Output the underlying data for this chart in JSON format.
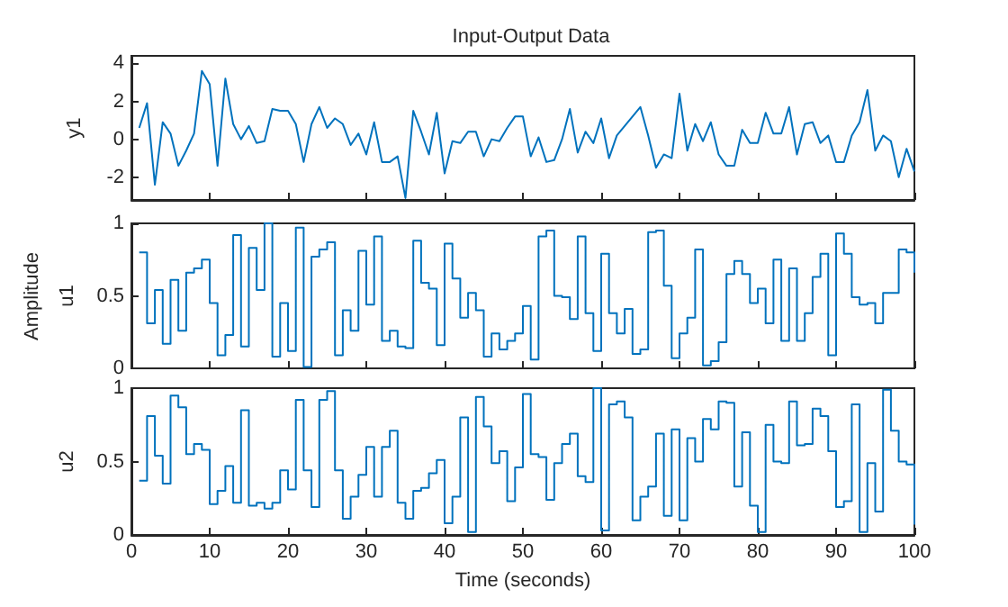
{
  "chart_data": [
    {
      "type": "line",
      "title": "Input-Output Data",
      "ylabel": "y1",
      "x": [
        1,
        2,
        3,
        4,
        5,
        6,
        7,
        8,
        9,
        10,
        11,
        12,
        13,
        14,
        15,
        16,
        17,
        18,
        19,
        20,
        21,
        22,
        23,
        24,
        25,
        26,
        27,
        28,
        29,
        30,
        31,
        32,
        33,
        34,
        35,
        36,
        37,
        38,
        39,
        40,
        41,
        42,
        43,
        44,
        45,
        46,
        47,
        48,
        49,
        50,
        51,
        52,
        53,
        54,
        55,
        56,
        57,
        58,
        59,
        60,
        61,
        62,
        63,
        64,
        65,
        66,
        67,
        68,
        69,
        70,
        71,
        72,
        73,
        74,
        75,
        76,
        77,
        78,
        79,
        80,
        81,
        82,
        83,
        84,
        85,
        86,
        87,
        88,
        89,
        90,
        91,
        92,
        93,
        94,
        95,
        96,
        97,
        98,
        99,
        100
      ],
      "series": [
        {
          "color": "#0072bd",
          "values": [
            0.6,
            1.9,
            -2.4,
            0.9,
            0.3,
            -1.4,
            -0.6,
            0.3,
            3.6,
            2.9,
            -1.4,
            3.2,
            0.8,
            0.0,
            0.7,
            -0.2,
            -0.1,
            1.6,
            1.5,
            1.5,
            0.8,
            -1.2,
            0.8,
            1.7,
            0.6,
            1.1,
            0.8,
            -0.3,
            0.3,
            -0.8,
            0.9,
            -1.2,
            -1.2,
            -0.9,
            -3.1,
            1.5,
            0.4,
            -0.8,
            1.4,
            -1.8,
            -0.1,
            -0.2,
            0.4,
            0.4,
            -0.9,
            0.0,
            -0.1,
            0.6,
            1.2,
            1.2,
            -0.9,
            0.1,
            -1.2,
            -1.1,
            0.0,
            1.6,
            -0.7,
            0.4,
            -0.2,
            1.1,
            -1.0,
            0.2,
            0.7,
            1.2,
            1.7,
            0.2,
            -1.5,
            -0.8,
            -1.0,
            2.4,
            -0.6,
            0.8,
            -0.1,
            0.9,
            -0.8,
            -1.4,
            -1.4,
            0.5,
            -0.2,
            -0.2,
            1.4,
            0.3,
            0.3,
            1.7,
            -0.8,
            0.8,
            0.9,
            -0.2,
            0.2,
            -1.2,
            -1.2,
            0.2,
            0.9,
            2.6,
            -0.6,
            0.2,
            -0.1,
            -2.0,
            -0.5,
            -1.7
          ]
        }
      ],
      "xlim": [
        0,
        100
      ],
      "xticks": [
        0,
        10,
        20,
        30,
        40,
        50,
        60,
        70,
        80,
        90,
        100
      ],
      "ylim": [
        -3.2,
        4.4
      ],
      "yticks": [
        -2,
        0,
        2,
        4
      ],
      "tick_labels": "y"
    },
    {
      "type": "step",
      "ylabel": "u1",
      "annotations": [
        "Amplitude"
      ],
      "x": [
        1,
        2,
        3,
        4,
        5,
        6,
        7,
        8,
        9,
        10,
        11,
        12,
        13,
        14,
        15,
        16,
        17,
        18,
        19,
        20,
        21,
        22,
        23,
        24,
        25,
        26,
        27,
        28,
        29,
        30,
        31,
        32,
        33,
        34,
        35,
        36,
        37,
        38,
        39,
        40,
        41,
        42,
        43,
        44,
        45,
        46,
        47,
        48,
        49,
        50,
        51,
        52,
        53,
        54,
        55,
        56,
        57,
        58,
        59,
        60,
        61,
        62,
        63,
        64,
        65,
        66,
        67,
        68,
        69,
        70,
        71,
        72,
        73,
        74,
        75,
        76,
        77,
        78,
        79,
        80,
        81,
        82,
        83,
        84,
        85,
        86,
        87,
        88,
        89,
        90,
        91,
        92,
        93,
        94,
        95,
        96,
        97,
        98,
        99,
        100
      ],
      "series": [
        {
          "color": "#0072bd",
          "values": [
            0.8,
            0.31,
            0.54,
            0.17,
            0.61,
            0.26,
            0.66,
            0.69,
            0.75,
            0.45,
            0.09,
            0.23,
            0.92,
            0.15,
            0.83,
            0.54,
            1.0,
            0.08,
            0.45,
            0.12,
            0.97,
            0.01,
            0.77,
            0.82,
            0.87,
            0.09,
            0.4,
            0.26,
            0.81,
            0.44,
            0.91,
            0.19,
            0.26,
            0.15,
            0.14,
            0.88,
            0.59,
            0.55,
            0.16,
            0.86,
            0.62,
            0.35,
            0.52,
            0.4,
            0.08,
            0.24,
            0.13,
            0.19,
            0.24,
            0.43,
            0.06,
            0.91,
            0.95,
            0.5,
            0.49,
            0.34,
            0.91,
            0.38,
            0.12,
            0.79,
            0.38,
            0.24,
            0.41,
            0.1,
            0.13,
            0.94,
            0.95,
            0.57,
            0.07,
            0.24,
            0.35,
            0.82,
            0.02,
            0.05,
            0.18,
            0.65,
            0.74,
            0.65,
            0.45,
            0.55,
            0.31,
            0.75,
            0.19,
            0.69,
            0.19,
            0.38,
            0.63,
            0.79,
            0.09,
            0.93,
            0.79,
            0.49,
            0.44,
            0.45,
            0.31,
            0.52,
            0.52,
            0.82,
            0.8,
            0.66
          ]
        }
      ],
      "xlim": [
        0,
        100
      ],
      "xticks": [
        0,
        10,
        20,
        30,
        40,
        50,
        60,
        70,
        80,
        90,
        100
      ],
      "ylim": [
        0,
        1
      ],
      "yticks": [
        0,
        0.5,
        1
      ],
      "tick_labels": "y"
    },
    {
      "type": "step",
      "ylabel": "u2",
      "xlabel": "Time (seconds)",
      "x": [
        1,
        2,
        3,
        4,
        5,
        6,
        7,
        8,
        9,
        10,
        11,
        12,
        13,
        14,
        15,
        16,
        17,
        18,
        19,
        20,
        21,
        22,
        23,
        24,
        25,
        26,
        27,
        28,
        29,
        30,
        31,
        32,
        33,
        34,
        35,
        36,
        37,
        38,
        39,
        40,
        41,
        42,
        43,
        44,
        45,
        46,
        47,
        48,
        49,
        50,
        51,
        52,
        53,
        54,
        55,
        56,
        57,
        58,
        59,
        60,
        61,
        62,
        63,
        64,
        65,
        66,
        67,
        68,
        69,
        70,
        71,
        72,
        73,
        74,
        75,
        76,
        77,
        78,
        79,
        80,
        81,
        82,
        83,
        84,
        85,
        86,
        87,
        88,
        89,
        90,
        91,
        92,
        93,
        94,
        95,
        96,
        97,
        98,
        99,
        100
      ],
      "series": [
        {
          "color": "#0072bd",
          "values": [
            0.37,
            0.81,
            0.54,
            0.35,
            0.95,
            0.87,
            0.55,
            0.62,
            0.58,
            0.21,
            0.3,
            0.47,
            0.22,
            0.85,
            0.2,
            0.22,
            0.18,
            0.22,
            0.44,
            0.31,
            0.92,
            0.44,
            0.19,
            0.92,
            0.98,
            0.44,
            0.11,
            0.26,
            0.41,
            0.6,
            0.26,
            0.6,
            0.71,
            0.22,
            0.11,
            0.3,
            0.32,
            0.42,
            0.51,
            0.08,
            0.26,
            0.8,
            0.02,
            0.94,
            0.74,
            0.49,
            0.57,
            0.23,
            0.46,
            0.96,
            0.55,
            0.53,
            0.24,
            0.49,
            0.62,
            0.69,
            0.4,
            0.36,
            1.0,
            0.03,
            0.89,
            0.91,
            0.8,
            0.1,
            0.26,
            0.33,
            0.69,
            0.13,
            0.72,
            0.1,
            0.66,
            0.5,
            0.79,
            0.72,
            0.91,
            0.9,
            0.33,
            0.7,
            0.2,
            0.02,
            0.75,
            0.5,
            0.49,
            0.91,
            0.61,
            0.62,
            0.86,
            0.81,
            0.57,
            0.19,
            0.23,
            0.89,
            0.02,
            0.49,
            0.16,
            0.99,
            0.71,
            0.5,
            0.48,
            0.07
          ]
        }
      ],
      "xlim": [
        0,
        100
      ],
      "xticks": [
        0,
        10,
        20,
        30,
        40,
        50,
        60,
        70,
        80,
        90,
        100
      ],
      "ylim": [
        0,
        1
      ],
      "yticks": [
        0,
        0.5,
        1
      ]
    }
  ]
}
